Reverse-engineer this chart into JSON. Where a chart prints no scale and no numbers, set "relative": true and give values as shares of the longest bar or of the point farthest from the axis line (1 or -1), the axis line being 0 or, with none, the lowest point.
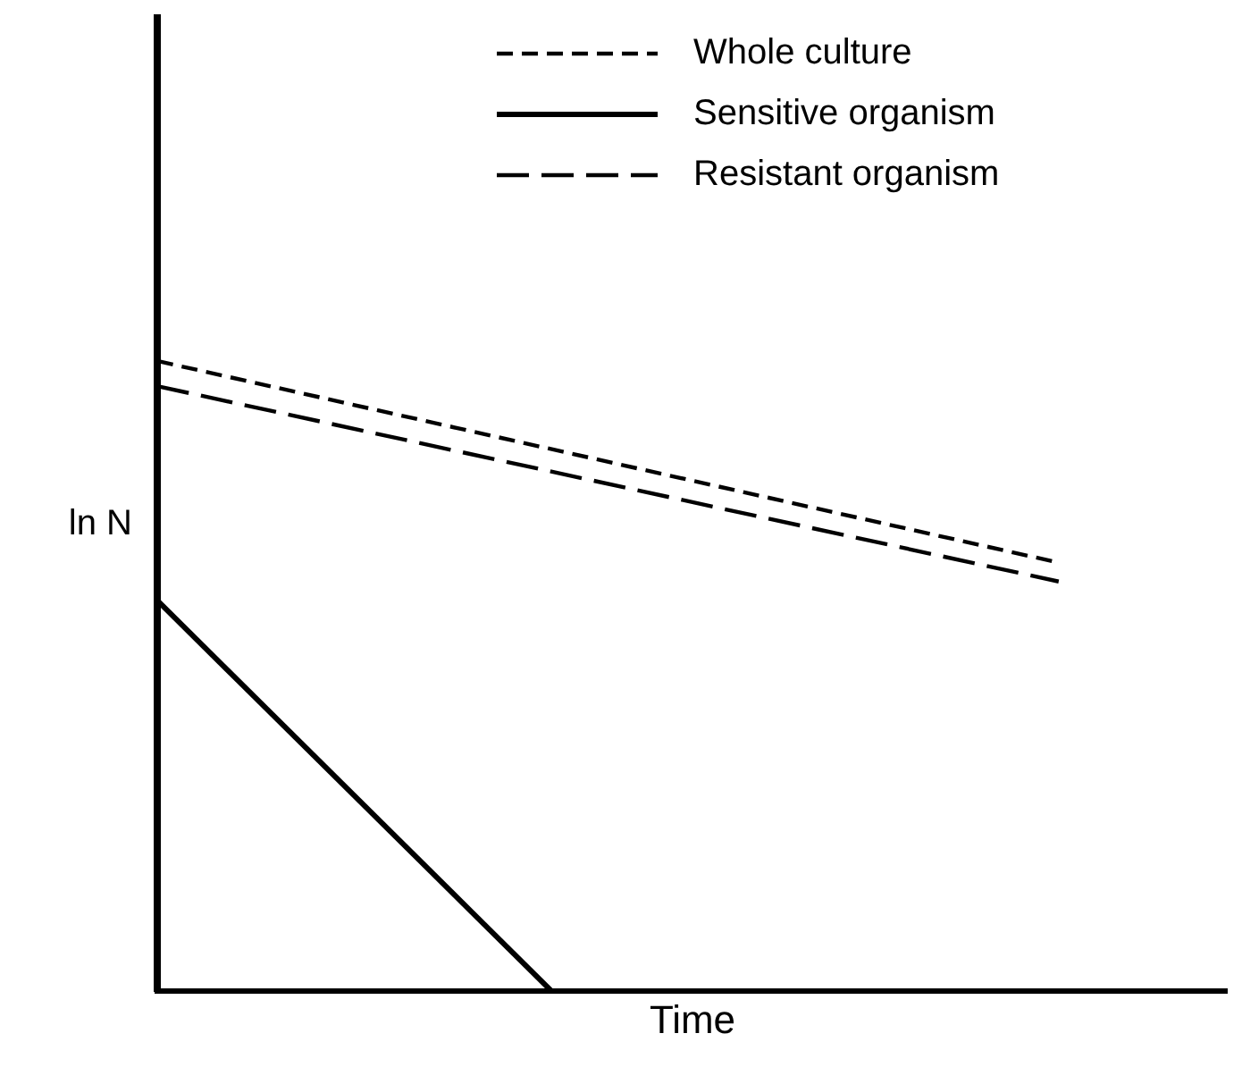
{
  "chart_data": {
    "type": "line",
    "relative": true,
    "xlabel": "Time",
    "ylabel": "ln N",
    "legend": "top right",
    "marker": "none",
    "categories": [
      null,
      null,
      null,
      null,
      null,
      null,
      null,
      null,
      null,
      null,
      null,
      null,
      null,
      null,
      null,
      null,
      null,
      null,
      null,
      null
    ],
    "series": [
      {
        "name": "Whole culture",
        "color": "#000000",
        "line_style": "dashed",
        "values": [
          1,
          null,
          null,
          null,
          null,
          null,
          null,
          null,
          null,
          null,
          null,
          null,
          null,
          null,
          null,
          null,
          0.68,
          null,
          null,
          null
        ]
      },
      {
        "name": "Sensitive organism",
        "color": "#000000",
        "line_style": "solid",
        "values": [
          0.62,
          null,
          null,
          null,
          null,
          null,
          null,
          0,
          null,
          null,
          null,
          null,
          null,
          null,
          null,
          null,
          null,
          null,
          null,
          null
        ]
      },
      {
        "name": "Resistant organism",
        "color": "#000000",
        "line_style": "dashed",
        "values": [
          0.96,
          null,
          null,
          null,
          null,
          null,
          null,
          null,
          null,
          null,
          null,
          null,
          null,
          null,
          null,
          null,
          0.65,
          null,
          null,
          null
        ]
      }
    ]
  }
}
